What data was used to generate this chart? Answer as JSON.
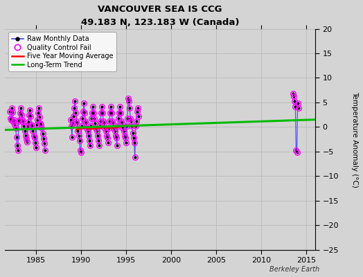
{
  "title": "VANCOUVER SEA IS CCG",
  "subtitle": "49.183 N, 123.183 W (Canada)",
  "ylabel": "Temperature Anomaly (°C)",
  "watermark": "Berkeley Earth",
  "ylim": [
    -25,
    20
  ],
  "xlim": [
    1981.5,
    2016
  ],
  "yticks": [
    -25,
    -20,
    -15,
    -10,
    -5,
    0,
    5,
    10,
    15,
    20
  ],
  "xticks": [
    1985,
    1990,
    1995,
    2000,
    2005,
    2010,
    2015
  ],
  "bg_color": "#d4d4d4",
  "plot_bg_color": "#d4d4d4",
  "segments": [
    {
      "x": [
        1982.04,
        1982.12,
        1982.21,
        1982.29,
        1982.37,
        1982.46,
        1982.54,
        1982.62,
        1982.71,
        1982.79,
        1982.87,
        1982.96,
        1983.04,
        1983.12,
        1983.21,
        1983.29,
        1983.37,
        1983.46,
        1983.54,
        1983.62,
        1983.71,
        1983.79,
        1983.87,
        1983.96,
        1984.04,
        1984.12,
        1984.21,
        1984.29,
        1984.37,
        1984.46,
        1984.54,
        1984.62,
        1984.71,
        1984.79,
        1984.87,
        1984.96,
        1985.04,
        1985.12,
        1985.21,
        1985.29,
        1985.37,
        1985.46,
        1985.54,
        1985.62,
        1985.71,
        1985.79,
        1985.87,
        1985.96
      ],
      "y": [
        3.2,
        1.8,
        1.5,
        3.8,
        3.0,
        1.0,
        1.5,
        0.5,
        -0.2,
        -2.0,
        -3.8,
        -4.8,
        1.2,
        1.5,
        2.8,
        3.8,
        2.5,
        1.5,
        1.0,
        0.2,
        -0.8,
        -1.8,
        -2.5,
        -3.0,
        0.2,
        1.0,
        2.5,
        3.5,
        2.2,
        0.5,
        0.2,
        -0.8,
        -1.8,
        -2.2,
        -3.2,
        -4.2,
        0.5,
        1.5,
        2.8,
        3.8,
        2.0,
        0.8,
        0.5,
        -0.3,
        -1.3,
        -2.3,
        -3.3,
        -4.8
      ]
    },
    {
      "x": [
        1988.79,
        1988.87,
        1988.96,
        1989.04,
        1989.12,
        1989.21,
        1989.29,
        1989.37,
        1989.46,
        1989.54,
        1989.62,
        1989.71,
        1989.79,
        1989.87,
        1989.96,
        1990.04,
        1990.12,
        1990.21,
        1990.29,
        1990.37,
        1990.46,
        1990.54,
        1990.62,
        1990.71,
        1990.79,
        1990.87,
        1990.96,
        1991.04,
        1991.12,
        1991.21,
        1991.29,
        1991.37,
        1991.46,
        1991.54,
        1991.62,
        1991.71,
        1991.79,
        1991.87,
        1991.96,
        1992.04,
        1992.12,
        1992.21,
        1992.29,
        1992.37,
        1992.46,
        1992.54,
        1992.62,
        1992.71,
        1992.79,
        1992.87,
        1992.96,
        1993.04,
        1993.12,
        1993.21,
        1993.29,
        1993.37,
        1993.46,
        1993.54,
        1993.62,
        1993.71,
        1993.79,
        1993.87,
        1993.96,
        1994.04,
        1994.12,
        1994.21,
        1994.29,
        1994.37,
        1994.46,
        1994.54,
        1994.62,
        1994.71,
        1994.79,
        1994.87,
        1994.96,
        1995.04,
        1995.12,
        1995.21,
        1995.29,
        1995.37,
        1995.46,
        1995.54,
        1995.62,
        1995.71,
        1995.79,
        1995.87,
        1995.96,
        1996.04,
        1996.12,
        1996.21,
        1996.29,
        1996.37
      ],
      "y": [
        1.5,
        0.2,
        -2.0,
        0.8,
        2.2,
        3.8,
        5.2,
        2.8,
        1.2,
        0.8,
        -0.8,
        -1.8,
        -2.8,
        -4.8,
        -5.2,
        0.2,
        1.8,
        3.2,
        4.8,
        2.8,
        1.2,
        0.8,
        -0.2,
        -0.8,
        -1.8,
        -2.8,
        -3.8,
        0.2,
        1.8,
        2.8,
        4.2,
        2.8,
        1.8,
        0.8,
        -0.2,
        -0.8,
        -1.8,
        -2.8,
        -3.8,
        0.2,
        1.2,
        2.8,
        4.2,
        2.8,
        1.2,
        0.8,
        -0.2,
        -0.8,
        -1.8,
        -2.2,
        -3.2,
        -0.3,
        1.2,
        2.8,
        4.2,
        2.8,
        1.2,
        0.8,
        -0.2,
        -0.8,
        -1.8,
        -2.2,
        -3.8,
        0.2,
        1.8,
        2.8,
        4.2,
        2.8,
        1.2,
        0.8,
        -0.2,
        -0.8,
        -1.8,
        -2.2,
        -3.2,
        0.2,
        1.8,
        5.8,
        5.2,
        3.8,
        1.8,
        1.2,
        0.2,
        -1.2,
        -2.2,
        -3.2,
        -6.2,
        0.2,
        1.2,
        3.2,
        3.8,
        2.2
      ]
    },
    {
      "x": [
        2013.54,
        2013.62,
        2013.71,
        2013.79,
        2013.87,
        2013.96,
        2014.04,
        2014.12
      ],
      "y": [
        6.8,
        6.2,
        5.2,
        4.2,
        -4.8,
        -5.2,
        4.8,
        3.8
      ]
    }
  ],
  "moving_avg": {
    "x": [
      1989.5,
      1990.0,
      1990.5,
      1991.0,
      1991.5,
      1992.0,
      1992.5,
      1993.0,
      1993.5,
      1994.0,
      1994.5,
      1995.0,
      1995.5,
      1996.0
    ],
    "y": [
      -0.5,
      -0.3,
      -0.2,
      -0.4,
      -0.3,
      -0.2,
      -0.1,
      -0.2,
      -0.1,
      -0.1,
      0.1,
      0.3,
      0.2,
      0.1
    ]
  },
  "trend": {
    "x": [
      1981.5,
      2016
    ],
    "y": [
      -0.6,
      1.5
    ]
  },
  "colors": {
    "raw_line": "#4444ff",
    "raw_marker": "#000000",
    "qc_fail": "#ff00ff",
    "moving_avg": "#ff0000",
    "trend": "#00bb00",
    "bg": "#d4d4d4",
    "grid": "#b8b8b8"
  }
}
